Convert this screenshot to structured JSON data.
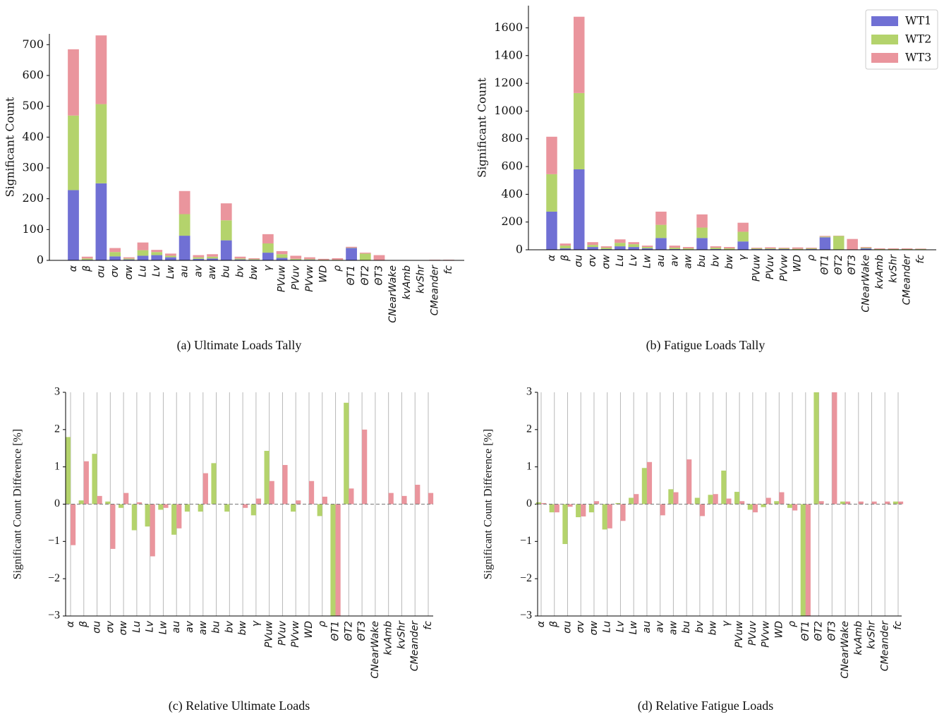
{
  "chart_data": [
    {
      "type": "bar",
      "stacked": true,
      "caption": "(a)  Ultimate Loads Tally",
      "ylabel": "Significant Count",
      "categories": [
        "α",
        "β",
        "σu",
        "σv",
        "σw",
        "Lu",
        "Lv",
        "Lw",
        "au",
        "av",
        "aw",
        "bu",
        "bv",
        "bw",
        "γ",
        "PVuw",
        "PVuv",
        "PVvw",
        "WD",
        "ρ",
        "ΘT1",
        "ΘT2",
        "ΘT3",
        "CNearWake",
        "kvAmb",
        "kvShr",
        "CMeander",
        "fc"
      ],
      "series": [
        {
          "color": "#7070d4",
          "values": [
            228,
            2,
            250,
            13,
            3,
            15,
            17,
            10,
            80,
            5,
            6,
            65,
            3,
            2,
            25,
            8,
            2,
            2,
            1,
            1,
            40,
            0,
            0,
            0,
            0,
            0,
            0,
            0
          ]
        },
        {
          "color": "#b4d36c",
          "values": [
            242,
            4,
            257,
            14,
            3,
            18,
            10,
            5,
            70,
            5,
            6,
            65,
            3,
            2,
            30,
            12,
            3,
            2,
            1,
            1,
            1,
            22,
            0,
            0,
            0,
            0,
            0,
            0
          ]
        },
        {
          "color": "#ea959d",
          "values": [
            215,
            6,
            223,
            13,
            4,
            25,
            7,
            7,
            75,
            7,
            8,
            55,
            6,
            3,
            30,
            10,
            10,
            6,
            3,
            5,
            3,
            3,
            17,
            1,
            1,
            1,
            2,
            2
          ]
        }
      ],
      "ylim": [
        0,
        735
      ],
      "yticks": [
        0,
        100,
        200,
        300,
        400,
        500,
        600,
        700
      ]
    },
    {
      "type": "bar",
      "stacked": true,
      "caption": "(b)  Fatigue Loads Tally",
      "ylabel": "Significant Count",
      "legend": "upper right",
      "categories": [
        "α",
        "β",
        "σu",
        "σv",
        "σw",
        "Lu",
        "Lv",
        "Lw",
        "au",
        "av",
        "aw",
        "bu",
        "bv",
        "bw",
        "γ",
        "PVuw",
        "PVuv",
        "PVvw",
        "WD",
        "ρ",
        "ΘT1",
        "ΘT2",
        "ΘT3",
        "CNearWake",
        "kvAmb",
        "kvShr",
        "CMeander",
        "fc"
      ],
      "series": [
        {
          "name": "WT1",
          "color": "#7070d4",
          "values": [
            275,
            10,
            580,
            20,
            5,
            25,
            20,
            10,
            85,
            5,
            3,
            85,
            5,
            3,
            60,
            5,
            5,
            5,
            2,
            5,
            90,
            0,
            0,
            10,
            2,
            2,
            2,
            3
          ]
        },
        {
          "name": "WT2",
          "color": "#b4d36c",
          "values": [
            270,
            20,
            550,
            15,
            10,
            25,
            20,
            10,
            95,
            10,
            7,
            75,
            10,
            7,
            70,
            5,
            5,
            5,
            5,
            5,
            5,
            100,
            0,
            5,
            3,
            3,
            3,
            3
          ]
        },
        {
          "name": "WT3",
          "color": "#ea959d",
          "values": [
            270,
            15,
            550,
            20,
            10,
            25,
            15,
            10,
            95,
            15,
            10,
            95,
            10,
            10,
            65,
            5,
            8,
            5,
            10,
            5,
            5,
            2,
            78,
            5,
            5,
            5,
            5,
            3
          ]
        }
      ],
      "ylim": [
        0,
        1760
      ],
      "yticks": [
        0,
        200,
        400,
        600,
        800,
        1000,
        1200,
        1400,
        1600
      ]
    },
    {
      "type": "bar",
      "stacked": false,
      "caption": "(c)  Relative Ultimate Loads",
      "ylabel": "Significant Count Difference [%]",
      "xgrid": true,
      "zero_line": true,
      "categories": [
        "α",
        "β",
        "σu",
        "σv",
        "σw",
        "Lu",
        "Lv",
        "Lw",
        "au",
        "av",
        "aw",
        "bu",
        "bv",
        "bw",
        "γ",
        "PVuw",
        "PVuv",
        "PVvw",
        "WD",
        "ρ",
        "ΘT1",
        "ΘT2",
        "ΘT3",
        "CNearWake",
        "kvAmb",
        "kvShr",
        "CMeander",
        "fc"
      ],
      "series": [
        {
          "color": "#b4d36c",
          "values": [
            1.8,
            0.1,
            1.35,
            0.07,
            -0.1,
            -0.7,
            -0.6,
            -0.15,
            -0.82,
            -0.2,
            -0.2,
            1.1,
            -0.2,
            0,
            -0.3,
            1.43,
            0,
            -0.2,
            0,
            -0.32,
            -3,
            2.72,
            0,
            0,
            0,
            0,
            0,
            0
          ]
        },
        {
          "color": "#ea959d",
          "values": [
            -1.1,
            1.15,
            0.22,
            -1.2,
            0.3,
            0.05,
            -1.4,
            -0.1,
            -0.65,
            0,
            0.83,
            0,
            0,
            -0.1,
            0.15,
            0.62,
            1.05,
            0.1,
            0.62,
            0.2,
            -3,
            0.42,
            2.0,
            0,
            0.3,
            0.22,
            0.52,
            0.3
          ]
        }
      ],
      "ylim": [
        -3,
        3
      ],
      "yticks": [
        {
          "value": -3,
          "label": "−3"
        },
        {
          "value": -2,
          "label": "−2"
        },
        {
          "value": -1,
          "label": "−1"
        },
        0,
        1,
        2,
        3
      ]
    },
    {
      "type": "bar",
      "stacked": false,
      "caption": "(d)  Relative Fatigue Loads",
      "ylabel": "Significant Count Difference [%]",
      "xgrid": true,
      "zero_line": true,
      "categories": [
        "α",
        "β",
        "σu",
        "σv",
        "σw",
        "Lu",
        "Lv",
        "Lw",
        "au",
        "av",
        "aw",
        "bu",
        "bv",
        "bw",
        "γ",
        "PVuw",
        "PVuv",
        "PVvw",
        "WD",
        "ρ",
        "ΘT1",
        "ΘT2",
        "ΘT3",
        "CNearWake",
        "kvAmb",
        "kvShr",
        "CMeander",
        "fc"
      ],
      "series": [
        {
          "color": "#b4d36c",
          "values": [
            0.05,
            -0.22,
            -1.07,
            -0.35,
            -0.22,
            -0.68,
            0.03,
            0.17,
            0.97,
            0,
            0.4,
            0,
            0.17,
            0.25,
            0.9,
            0.33,
            -0.15,
            -0.08,
            0.08,
            -0.1,
            -3,
            3,
            0,
            0.07,
            0,
            0,
            0,
            0.07
          ]
        },
        {
          "color": "#ea959d",
          "values": [
            0.03,
            -0.22,
            -0.07,
            -0.33,
            0.08,
            -0.65,
            -0.45,
            0.27,
            1.13,
            -0.3,
            0.32,
            1.2,
            -0.32,
            0.27,
            0.15,
            0.08,
            -0.22,
            0.17,
            0.32,
            -0.17,
            -3,
            0.08,
            3,
            0.07,
            0.07,
            0.07,
            0.07,
            0.07
          ]
        }
      ],
      "ylim": [
        -3,
        3
      ],
      "yticks": [
        {
          "value": -3,
          "label": "−3"
        },
        {
          "value": -2,
          "label": "−2"
        },
        {
          "value": -1,
          "label": "−1"
        },
        0,
        1,
        2,
        3
      ]
    }
  ]
}
